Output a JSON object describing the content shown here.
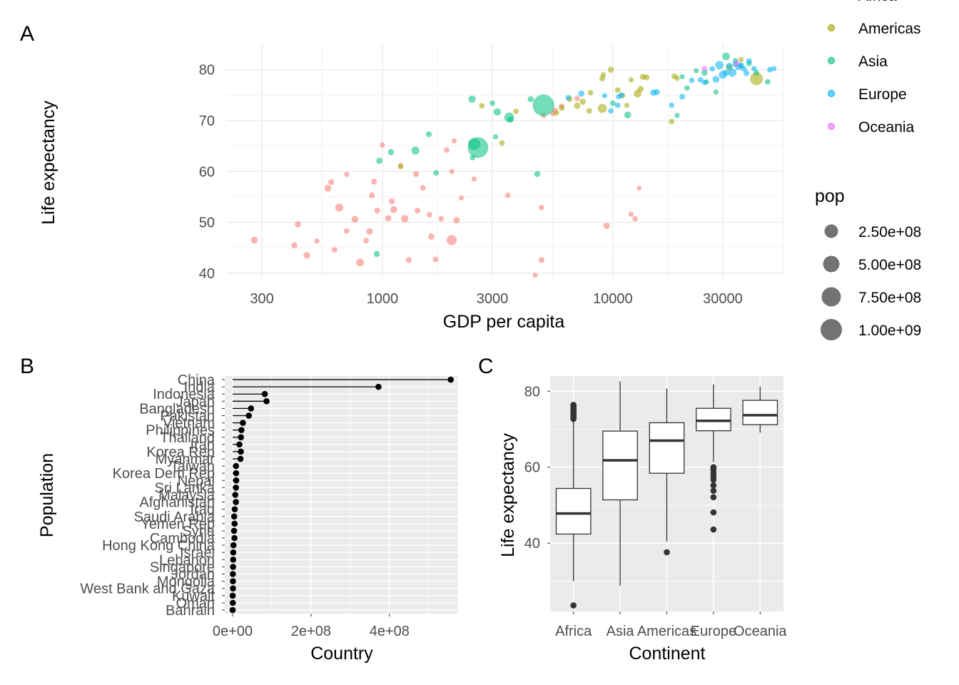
{
  "panels": [
    {
      "tag": "A"
    },
    {
      "tag": "B"
    },
    {
      "tag": "C"
    }
  ],
  "chart_data": [
    {
      "panel": "A",
      "type": "scatter",
      "xlabel": "GDP per capita",
      "ylabel": "Life expectancy",
      "x_scale": "log10",
      "x_ticks": [
        "300",
        "1000",
        "3000",
        "10000",
        "30000"
      ],
      "y_ticks": [
        "40",
        "50",
        "60",
        "70",
        "80"
      ],
      "xlim": [
        210,
        55000
      ],
      "ylim": [
        39,
        85
      ],
      "grid": true,
      "size_legend": {
        "title": "pop",
        "labels": [
          "2.50e+08",
          "5.00e+08",
          "7.50e+08",
          "1.00e+09"
        ],
        "values": [
          250000000,
          500000000,
          750000000,
          1000000000
        ]
      },
      "color_legend": {
        "entries": [
          {
            "name": "Africa",
            "color": "#F8766D"
          },
          {
            "name": "Americas",
            "color": "#A3A500"
          },
          {
            "name": "Asia",
            "color": "#00BF7D"
          },
          {
            "name": "Europe",
            "color": "#00B0F6"
          },
          {
            "name": "Oceania",
            "color": "#E76BF3"
          }
        ]
      },
      "series": [
        {
          "name": "Africa",
          "color": "#F8766D",
          "points": [
            [
              278,
              46.5,
              8
            ],
            [
              415,
              45.5,
              5
            ],
            [
              470,
              43.5,
              7
            ],
            [
              430,
              49.6,
              5
            ],
            [
              520,
              46.3,
              2
            ],
            [
              580,
              56.7,
              8
            ],
            [
              600,
              57.9,
              4
            ],
            [
              650,
              52.9,
              15
            ],
            [
              620,
              44.6,
              3
            ],
            [
              700,
              48.3,
              3
            ],
            [
              700,
              59.4,
              2
            ],
            [
              760,
              50.6,
              8
            ],
            [
              800,
              42.1,
              13
            ],
            [
              850,
              46.4,
              3
            ],
            [
              880,
              48.2,
              7
            ],
            [
              900,
              55.3,
              4
            ],
            [
              950,
              52.3,
              4
            ],
            [
              920,
              58.0,
              4
            ],
            [
              1000,
              65.2,
              2
            ],
            [
              1100,
              54.1,
              4
            ],
            [
              1060,
              50.8,
              6
            ],
            [
              1120,
              52.5,
              8
            ],
            [
              1200,
              61.2,
              2
            ],
            [
              1250,
              50.7,
              11
            ],
            [
              1300,
              42.6,
              4
            ],
            [
              1400,
              59.5,
              4
            ],
            [
              1420,
              52.3,
              4
            ],
            [
              1500,
              56.8,
              3
            ],
            [
              1600,
              51.5,
              3
            ],
            [
              1630,
              47.2,
              6
            ],
            [
              1700,
              42.7,
              3
            ],
            [
              1800,
              50.7,
              3
            ],
            [
              1900,
              64.2,
              3
            ],
            [
              2050,
              66.0,
              2
            ],
            [
              2000,
              60.0,
              2
            ],
            [
              2100,
              50.4,
              6
            ],
            [
              2000,
              46.5,
              30
            ],
            [
              2200,
              54.8,
              2
            ],
            [
              2500,
              58.5,
              2
            ],
            [
              3500,
              55.3,
              3
            ],
            [
              4600,
              39.6,
              2
            ],
            [
              4900,
              42.6,
              4
            ],
            [
              4900,
              52.9,
              3
            ],
            [
              5000,
              71.0,
              2
            ],
            [
              5600,
              72.0,
              3
            ],
            [
              5500,
              71.4,
              3
            ],
            [
              6000,
              72.8,
              3
            ],
            [
              7000,
              74.3,
              3
            ],
            [
              9400,
              49.3,
              6
            ],
            [
              12000,
              51.6,
              2
            ],
            [
              12500,
              50.7,
              3
            ],
            [
              13000,
              56.7,
              1
            ]
          ]
        },
        {
          "name": "Americas",
          "color": "#A3A500",
          "points": [
            [
              1200,
              60.9,
              2
            ],
            [
              2700,
              72.9,
              3
            ],
            [
              3300,
              65.6,
              3
            ],
            [
              3800,
              71.8,
              3
            ],
            [
              5700,
              71.5,
              3
            ],
            [
              6000,
              72.5,
              4
            ],
            [
              6500,
              74.2,
              4
            ],
            [
              7000,
              72.9,
              6
            ],
            [
              7400,
              73.7,
              5
            ],
            [
              7900,
              71.9,
              3
            ],
            [
              8000,
              75.5,
              3
            ],
            [
              9000,
              78.3,
              4
            ],
            [
              9000,
              72.4,
              22
            ],
            [
              9100,
              79.0,
              2
            ],
            [
              9800,
              80.0,
              5
            ],
            [
              10500,
              76.0,
              3
            ],
            [
              11000,
              74.9,
              3
            ],
            [
              11500,
              73.0,
              2
            ],
            [
              12000,
              78.0,
              2
            ],
            [
              12800,
              75.3,
              12
            ],
            [
              13200,
              76.2,
              6
            ],
            [
              13500,
              78.6,
              5
            ],
            [
              14000,
              78.5,
              4
            ],
            [
              18000,
              69.8,
              3
            ],
            [
              18500,
              78.7,
              4
            ],
            [
              19000,
              78.3,
              2
            ],
            [
              32000,
              80.4,
              6
            ],
            [
              36000,
              82.0,
              2
            ],
            [
              42000,
              78.2,
              60
            ]
          ]
        },
        {
          "name": "Asia",
          "color": "#00BF7D",
          "points": [
            [
              945,
              43.8,
              5
            ],
            [
              970,
              62.1,
              6
            ],
            [
              1090,
              63.8,
              5
            ],
            [
              1390,
              64.1,
              14
            ],
            [
              1590,
              67.3,
              4
            ],
            [
              1710,
              59.7,
              3
            ],
            [
              2450,
              74.2,
              10
            ],
            [
              2460,
              62.7,
              3
            ],
            [
              2600,
              64.7,
              200
            ],
            [
              2500,
              65.4,
              50
            ],
            [
              3000,
              73.4,
              3
            ],
            [
              3100,
              66.8,
              2
            ],
            [
              3150,
              71.7,
              11
            ],
            [
              3550,
              70.6,
              28
            ],
            [
              3600,
              70.2,
              5
            ],
            [
              4400,
              74.2,
              5
            ],
            [
              4700,
              59.5,
              5
            ],
            [
              5000,
              73.0,
              225
            ],
            [
              10000,
              73.4,
              3
            ],
            [
              11600,
              71.1,
              8
            ],
            [
              19000,
              71.0,
              2
            ],
            [
              20000,
              78.6,
              2
            ],
            [
              21000,
              76.4,
              3
            ],
            [
              23000,
              79.8,
              2
            ],
            [
              25000,
              79.4,
              5
            ],
            [
              25500,
              77.6,
              2
            ],
            [
              28000,
              75.6,
              2
            ],
            [
              31000,
              82.6,
              12
            ],
            [
              34000,
              81.8,
              2
            ],
            [
              36000,
              80.7,
              2
            ],
            [
              39000,
              81.2,
              3
            ],
            [
              42000,
              79.4,
              3
            ],
            [
              47000,
              77.6,
              3
            ]
          ]
        },
        {
          "name": "Europe",
          "color": "#00B0F6",
          "points": [
            [
              6400,
              74.5,
              3
            ],
            [
              7300,
              75.3,
              5
            ],
            [
              9200,
              74.9,
              2
            ],
            [
              9800,
              71.9,
              3
            ],
            [
              10500,
              73.0,
              3
            ],
            [
              10600,
              74.7,
              3
            ],
            [
              10900,
              75.0,
              3
            ],
            [
              15000,
              75.5,
              6
            ],
            [
              15500,
              75.6,
              5
            ],
            [
              18000,
              73.0,
              3
            ],
            [
              20000,
              74.7,
              4
            ],
            [
              22000,
              77.9,
              3
            ],
            [
              24000,
              78.0,
              3
            ],
            [
              25000,
              77.5,
              3
            ],
            [
              27000,
              80.2,
              3
            ],
            [
              28000,
              78.1,
              8
            ],
            [
              29000,
              80.9,
              16
            ],
            [
              30000,
              79.0,
              14
            ],
            [
              31000,
              79.4,
              5
            ],
            [
              32000,
              80.7,
              8
            ],
            [
              33000,
              79.4,
              15
            ],
            [
              34000,
              81.1,
              4
            ],
            [
              35000,
              80.5,
              5
            ],
            [
              36000,
              80.9,
              3
            ],
            [
              37000,
              80.2,
              4
            ],
            [
              38000,
              79.3,
              4
            ],
            [
              39000,
              81.7,
              3
            ],
            [
              41000,
              80.2,
              3
            ],
            [
              48000,
              80.0,
              3
            ],
            [
              50000,
              80.2,
              2
            ]
          ]
        },
        {
          "name": "Oceania",
          "color": "#E76BF3",
          "points": [
            [
              25000,
              80.2,
              4
            ],
            [
              34500,
              81.2,
              4
            ]
          ]
        }
      ]
    },
    {
      "panel": "B",
      "type": "lollipop",
      "xlabel": "Country",
      "ylabel": "Population",
      "x_ticks": [
        "0e+00",
        "2e+08",
        "4e+08"
      ],
      "x_tick_values": [
        0,
        200000000,
        400000000
      ],
      "xlim": [
        -20000000,
        575000000
      ],
      "categories": [
        "China",
        "India",
        "Indonesia",
        "Japan",
        "Bangladesh",
        "Pakistan",
        "Vietnam",
        "Philippines",
        "Thailand",
        "Iran",
        "Korea Rep",
        "Myanmar",
        "Taiwan",
        "Korea Dem Rep",
        "Nepal",
        "Sri Lanka",
        "Malaysia",
        "Afghanistan",
        "Iraq",
        "Saudi Arabia",
        "Yemen Rep",
        "Syria",
        "Cambodia",
        "Hong Kong China",
        "Israel",
        "Lebanon",
        "Singapore",
        "Jordan",
        "Mongolia",
        "West Bank and Gaza",
        "Kuwait",
        "Oman",
        "Bahrain"
      ],
      "values": [
        556263527,
        372000000,
        82052000,
        86459025,
        46886859,
        41346560,
        26246839,
        22438691,
        21289402,
        17272000,
        20947571,
        20092996,
        8550362,
        8865488,
        9182536,
        8550000,
        6748378,
        8425333,
        5441766,
        4005677,
        4963829,
        3661549,
        4693836,
        2125900,
        1620914,
        1439529,
        1127000,
        607914,
        800663,
        1030585,
        160000,
        507833,
        120447
      ]
    },
    {
      "panel": "C",
      "type": "boxplot",
      "xlabel": "Continent",
      "ylabel": "Life expectancy",
      "categories": [
        "Africa",
        "Asia",
        "Americas",
        "Europe",
        "Oceania"
      ],
      "y_ticks": [
        "40",
        "60",
        "80"
      ],
      "y_tick_values": [
        40,
        60,
        80
      ],
      "ylim": [
        22,
        84
      ],
      "boxes": [
        {
          "category": "Africa",
          "min": 30,
          "q1": 42.4,
          "median": 47.8,
          "q3": 54.4,
          "max": 72.5,
          "outliers": [
            23.6,
            72.7,
            73.0,
            73.3,
            73.6,
            73.9,
            74.2,
            74.5,
            74.8,
            75.1,
            75.4,
            75.7,
            76.0,
            76.4
          ]
        },
        {
          "category": "Asia",
          "min": 28.8,
          "q1": 51.4,
          "median": 61.8,
          "q3": 69.5,
          "max": 82.6,
          "outliers": []
        },
        {
          "category": "Americas",
          "min": 40.4,
          "q1": 58.4,
          "median": 67.0,
          "q3": 71.7,
          "max": 80.7,
          "outliers": [
            37.6
          ]
        },
        {
          "category": "Europe",
          "min": 61.4,
          "q1": 69.6,
          "median": 72.2,
          "q3": 75.5,
          "max": 81.8,
          "outliers": [
            43.6,
            48.1,
            52.1,
            53.8,
            55.2,
            56.7,
            57.6,
            58.4,
            59.3,
            60.0
          ]
        },
        {
          "category": "Oceania",
          "min": 69.1,
          "q1": 71.2,
          "median": 73.7,
          "q3": 77.6,
          "max": 81.2,
          "outliers": []
        }
      ]
    }
  ]
}
